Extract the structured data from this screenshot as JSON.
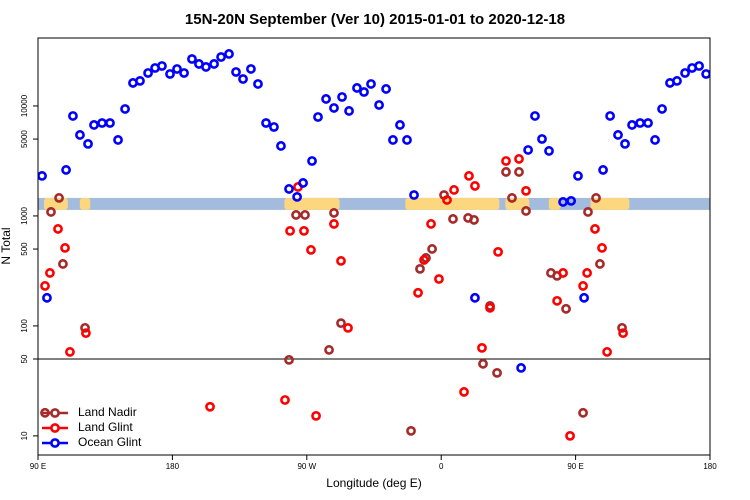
{
  "chart_data": {
    "type": "scatter",
    "title": "15N-20N September (Ver 10)   2015-01-01 to 2020-12-18",
    "x_label": "Longitude (deg E)",
    "y_label": "N Total",
    "log_y": true,
    "xlim": [
      90,
      540
    ],
    "ylim": [
      6.7,
      41500
    ],
    "xticks": [
      {
        "value": 90,
        "label": "90 E"
      },
      180,
      {
        "value": 270,
        "label": "90 W"
      },
      {
        "value": 360,
        "label": "0"
      },
      {
        "value": 450,
        "label": "90 E"
      },
      {
        "value": 540,
        "label": "180"
      }
    ],
    "yticks": [
      10,
      50,
      100,
      500,
      1000,
      5000,
      10000
    ],
    "hline": 50,
    "band": {
      "ylim": [
        1134,
        1458
      ],
      "color": "#a3bbdc",
      "patches": [
        [
          94,
          110
        ],
        [
          118,
          125
        ],
        [
          255,
          292
        ],
        [
          336,
          399
        ],
        [
          403,
          419
        ],
        [
          432,
          440
        ],
        [
          460,
          486
        ]
      ],
      "patch_color": "#fcd77f"
    },
    "legend": "bottom-left",
    "series": [
      {
        "name": "Land Nadir",
        "color": "#a52a2a",
        "x": [
          94.7,
          98.7,
          104.1,
          106.7,
          121.5,
          258.1,
          262.8,
          268.8,
          284.9,
          288.2,
          292.9,
          339.8,
          345.8,
          349.8,
          353.9,
          361.9,
          367.9,
          378.0,
          382.0,
          388.0,
          392.7,
          397.4,
          403.4,
          407.4,
          412.1,
          416.8,
          433.5,
          437.6,
          443.6,
          455.0,
          458.3,
          463.7,
          466.3,
          481.1
        ],
        "values": [
          16.2,
          1087,
          1458,
          366,
          96,
          49.1,
          1021,
          1021,
          60.5,
          1065,
          106,
          11.1,
          330,
          415,
          501,
          1550,
          939,
          959,
          920,
          45.2,
          152,
          37.4,
          2512,
          1458,
          2512,
          1110,
          303,
          285,
          143,
          16.2,
          1087,
          1458,
          366,
          96
        ]
      },
      {
        "name": "Land Glint",
        "color": "#ff0000",
        "x": [
          94.7,
          98.0,
          103.4,
          108.1,
          111.4,
          122.1,
          205.2,
          255.4,
          258.8,
          264.1,
          268.1,
          272.8,
          276.2,
          288.2,
          292.9,
          297.6,
          344.5,
          348.5,
          353.2,
          358.5,
          363.9,
          368.6,
          375.3,
          378.6,
          382.6,
          387.3,
          392.7,
          398.1,
          403.4,
          412.1,
          416.8,
          437.6,
          441.6,
          446.3,
          455.0,
          457.7,
          463.0,
          467.7,
          471.1,
          481.8
        ],
        "values": [
          231,
          303,
          762,
          512,
          58,
          86,
          18.4,
          21.2,
          731,
          1835,
          731,
          491,
          15.2,
          846,
          390,
          95.9,
          200,
          398,
          846,
          267,
          1397,
          1723,
          25.1,
          2312,
          1875,
          63.1,
          146,
          471,
          3160,
          3300,
          1690,
          169,
          303,
          10,
          231,
          303,
          762,
          512,
          58,
          86
        ]
      },
      {
        "name": "Ocean Glint",
        "color": "#0000ff",
        "x": [
          92.7,
          96.0,
          108.8,
          113.4,
          118.1,
          123.5,
          127.5,
          132.9,
          138.2,
          143.6,
          148.3,
          153.6,
          158.3,
          163.7,
          168.4,
          173.0,
          178.4,
          183.1,
          187.8,
          193.1,
          197.8,
          202.5,
          207.9,
          212.6,
          217.9,
          222.6,
          227.3,
          232.6,
          237.3,
          242.7,
          248.0,
          252.7,
          258.1,
          263.5,
          267.5,
          273.5,
          277.5,
          282.9,
          288.2,
          293.6,
          298.3,
          303.6,
          308.3,
          313.0,
          318.4,
          323.1,
          327.7,
          332.4,
          337.1,
          341.8,
          382.6,
          413.5,
          418.2,
          422.8,
          427.5,
          432.2,
          441.6,
          447.0,
          451.6,
          455.7,
          468.4,
          473.1,
          478.4,
          483.1,
          487.8,
          493.2,
          498.5,
          503.2,
          507.9,
          513.2,
          517.9,
          523.3,
          528.0,
          532.7,
          537.4
        ],
        "values": [
          2312,
          180,
          2620,
          8110,
          5450,
          4520,
          6720,
          7000,
          7000,
          4910,
          9390,
          16200,
          16900,
          19950,
          22150,
          23100,
          19540,
          21700,
          19950,
          26740,
          24100,
          22630,
          24100,
          27870,
          29720,
          20370,
          17580,
          21700,
          15850,
          7000,
          6440,
          4330,
          1760,
          1490,
          1995,
          3160,
          7940,
          11580,
          9590,
          12070,
          9010,
          14580,
          13400,
          15850,
          10210,
          14280,
          4910,
          6720,
          4910,
          1550,
          180,
          41.5,
          3980,
          8110,
          5010,
          3900,
          1340,
          1370,
          2312,
          180,
          2620,
          8110,
          5450,
          4520,
          6720,
          7000,
          7000,
          4910,
          9390,
          16200,
          16900,
          19950,
          22150,
          23100,
          19540
        ]
      }
    ]
  }
}
